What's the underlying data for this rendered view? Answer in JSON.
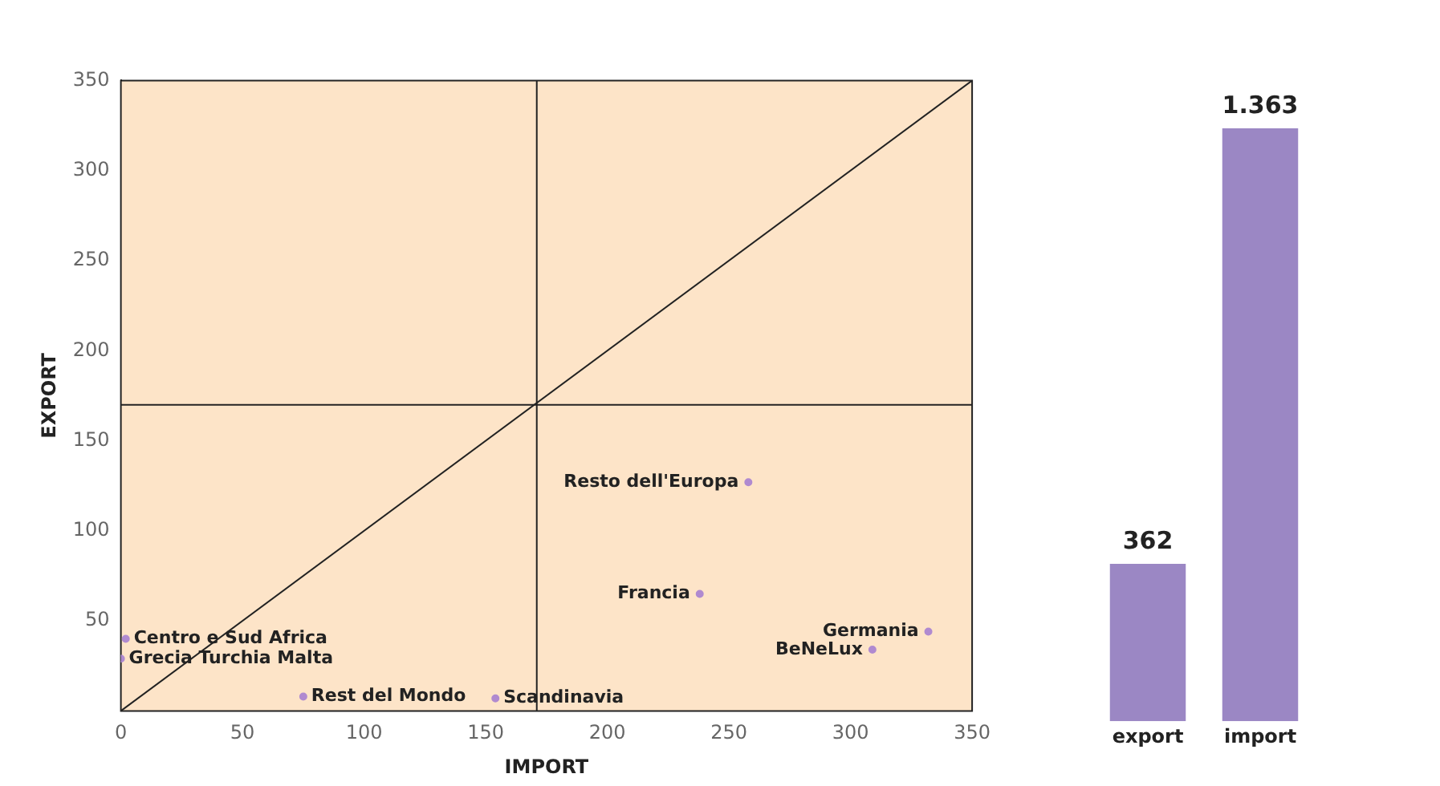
{
  "chart_data": [
    {
      "type": "scatter",
      "xlabel": "IMPORT",
      "ylabel": "EXPORT",
      "xlim": [
        0,
        350
      ],
      "ylim": [
        0,
        350
      ],
      "xticks": [
        0,
        50,
        100,
        150,
        200,
        250,
        300,
        350
      ],
      "yticks": [
        50,
        100,
        150,
        200,
        250,
        300,
        350
      ],
      "grid": false,
      "legend": false,
      "series": [
        {
          "type": "scatter",
          "color": "#b08ad0",
          "marker": "circle",
          "x": [
            2,
            0,
            75,
            154,
            238,
            258,
            332,
            309
          ],
          "values": [
            40,
            29,
            8,
            7,
            65,
            127,
            44,
            34
          ]
        },
        {
          "type": "line",
          "color": "#222222",
          "marker": "none",
          "x": [
            0,
            350
          ],
          "values": [
            0,
            350
          ]
        }
      ],
      "ref_lines": [
        {
          "axis": "x",
          "value": 171,
          "color": "#222222"
        },
        {
          "axis": "y",
          "value": 170,
          "color": "#222222"
        }
      ],
      "annotations": [
        {
          "text": "Centro e Sud Africa",
          "x": 2,
          "y": 40
        },
        {
          "text": "Grecia Turchia Malta",
          "x": 0,
          "y": 29
        },
        {
          "text": "Rest del Mondo",
          "x": 75,
          "y": 8
        },
        {
          "text": "Scandinavia",
          "x": 154,
          "y": 7
        },
        {
          "text": "Francia",
          "x": 238,
          "y": 65
        },
        {
          "text": "Resto dell'Europa",
          "x": 258,
          "y": 127
        },
        {
          "text": "Germania",
          "x": 332,
          "y": 44
        },
        {
          "text": "BeNeLux",
          "x": 309,
          "y": 34
        }
      ]
    },
    {
      "type": "bar",
      "categories": [
        "export",
        "import"
      ],
      "values": [
        362,
        1363
      ],
      "value_labels": [
        "362",
        "1.363"
      ],
      "color": "#9b87c4",
      "tick_labels": "x",
      "legend": false,
      "grid": false
    }
  ]
}
